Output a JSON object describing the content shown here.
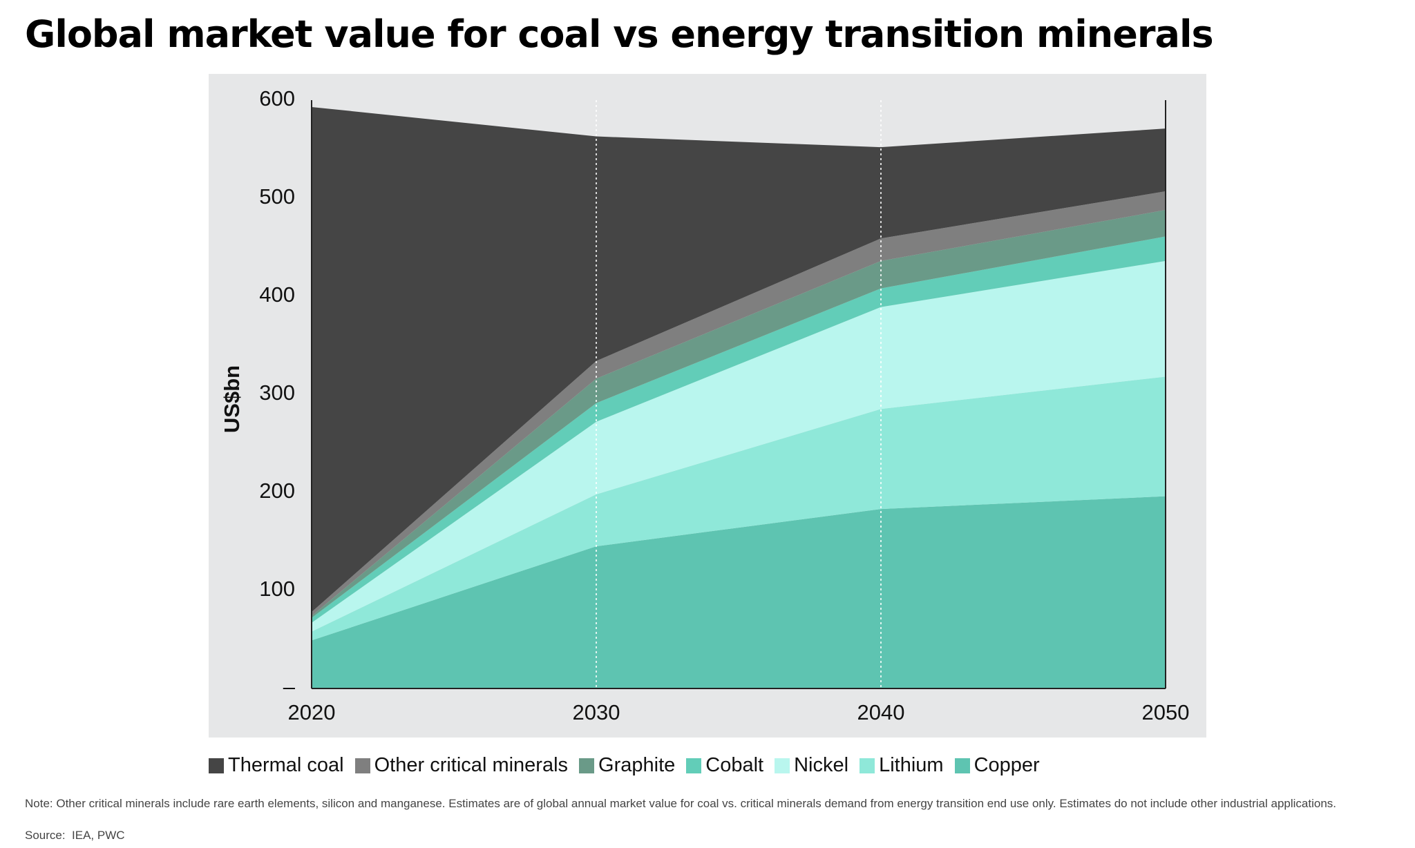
{
  "chart_data": {
    "type": "stacked-area",
    "title": "Global market value for coal vs energy transition minerals",
    "y_label": "US$bn",
    "x": [
      2020,
      2030,
      2040,
      2050
    ],
    "xlim": [
      2020,
      2050
    ],
    "xticks": [
      2020,
      2030,
      2040,
      2050
    ],
    "ylim": [
      0,
      600
    ],
    "yticks": [
      {
        "value": 0,
        "label": "–"
      },
      100,
      200,
      300,
      400,
      500,
      600
    ],
    "series": [
      {
        "name": "Thermal coal",
        "color": "#454545",
        "values": [
          515,
          229,
          93,
          64
        ]
      },
      {
        "name": "Other critical minerals",
        "color": "#7f7f7f",
        "values": [
          4,
          18,
          23,
          19
        ]
      },
      {
        "name": "Graphite",
        "color": "#6a9a88",
        "values": [
          2,
          25,
          28,
          27
        ]
      },
      {
        "name": "Cobalt",
        "color": "#62cdb8",
        "values": [
          5,
          19,
          19,
          25
        ]
      },
      {
        "name": "Nickel",
        "color": "#b9f6ee",
        "values": [
          9,
          74,
          104,
          118
        ]
      },
      {
        "name": "Lithium",
        "color": "#8fe8d9",
        "values": [
          9,
          53,
          102,
          122
        ]
      },
      {
        "name": "Copper",
        "color": "#5ec4b1",
        "values": [
          49,
          145,
          183,
          196
        ]
      }
    ],
    "note": "Note: Other critical minerals include rare earth elements, silicon and manganese. Estimates are of global annual market value for coal vs. critical minerals demand from energy transition end use only. Estimates do not include other industrial applications.",
    "source": "Source:  IEA, PWC"
  }
}
